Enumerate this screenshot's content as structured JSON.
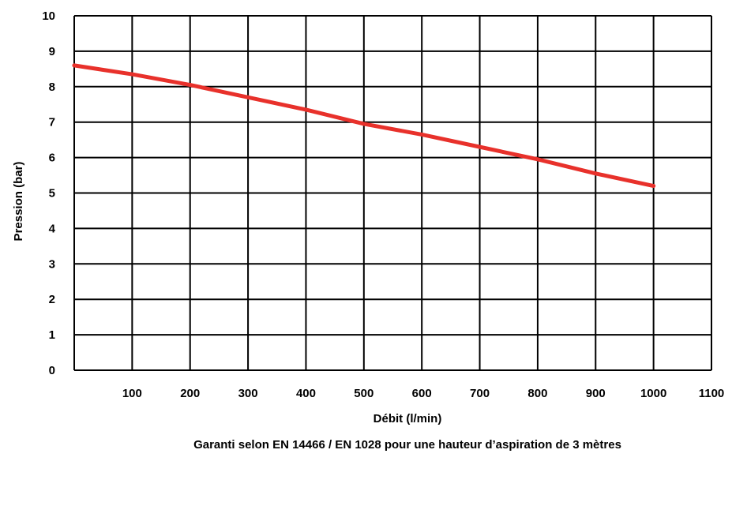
{
  "chart_data": {
    "type": "line",
    "xlabel": "Débit (l/min)",
    "ylabel": "Pression (bar)",
    "caption": "Garanti selon EN 14466 / EN 1028 pour une hauteur d’aspiration de 3 mètres",
    "xlim": [
      0,
      1100
    ],
    "ylim": [
      0,
      10
    ],
    "x_ticks": [
      100,
      200,
      300,
      400,
      500,
      600,
      700,
      800,
      900,
      1000,
      1100
    ],
    "y_ticks": [
      0,
      1,
      2,
      3,
      4,
      5,
      6,
      7,
      8,
      9,
      10
    ],
    "grid": true,
    "line_color": "#e8312b",
    "series": [
      {
        "x": [
          0,
          100,
          200,
          300,
          400,
          500,
          600,
          700,
          800,
          900,
          1000
        ],
        "values": [
          8.6,
          8.35,
          8.05,
          7.7,
          7.35,
          6.95,
          6.65,
          6.3,
          5.95,
          5.55,
          5.2
        ]
      }
    ]
  }
}
